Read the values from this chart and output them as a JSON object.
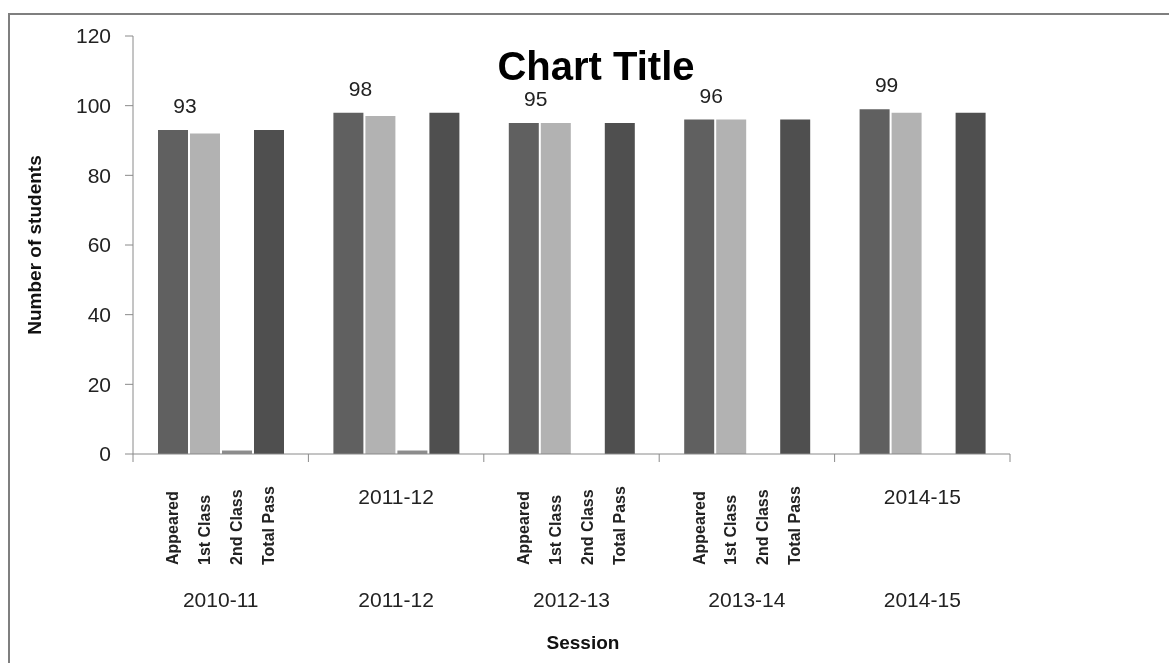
{
  "chart_data": {
    "type": "bar",
    "title": "Chart Title",
    "xlabel": "Session",
    "ylabel": "Number of students",
    "categories": [
      "2010-11",
      "2011-12",
      "2012-13",
      "2013-14",
      "2014-15"
    ],
    "series": [
      {
        "name": "Appeared",
        "color": "#606060",
        "values": [
          93,
          98,
          95,
          96,
          99
        ],
        "value_labels": [
          "93",
          "98",
          "95",
          "96",
          "99"
        ]
      },
      {
        "name": "1st Class",
        "color": "#b2b2b2",
        "values": [
          92,
          97,
          95,
          96,
          98
        ]
      },
      {
        "name": "2nd Class",
        "color": "#8c8c8c",
        "values": [
          1,
          1,
          0,
          0,
          0
        ]
      },
      {
        "name": "Total Pass",
        "color": "#4f4f4f",
        "values": [
          93,
          98,
          95,
          96,
          98
        ]
      }
    ],
    "ylim": [
      0,
      120
    ],
    "yticks": [
      0,
      20,
      40,
      60,
      80,
      100,
      120
    ],
    "annotations": [
      "2011-12",
      "2014-15"
    ]
  }
}
